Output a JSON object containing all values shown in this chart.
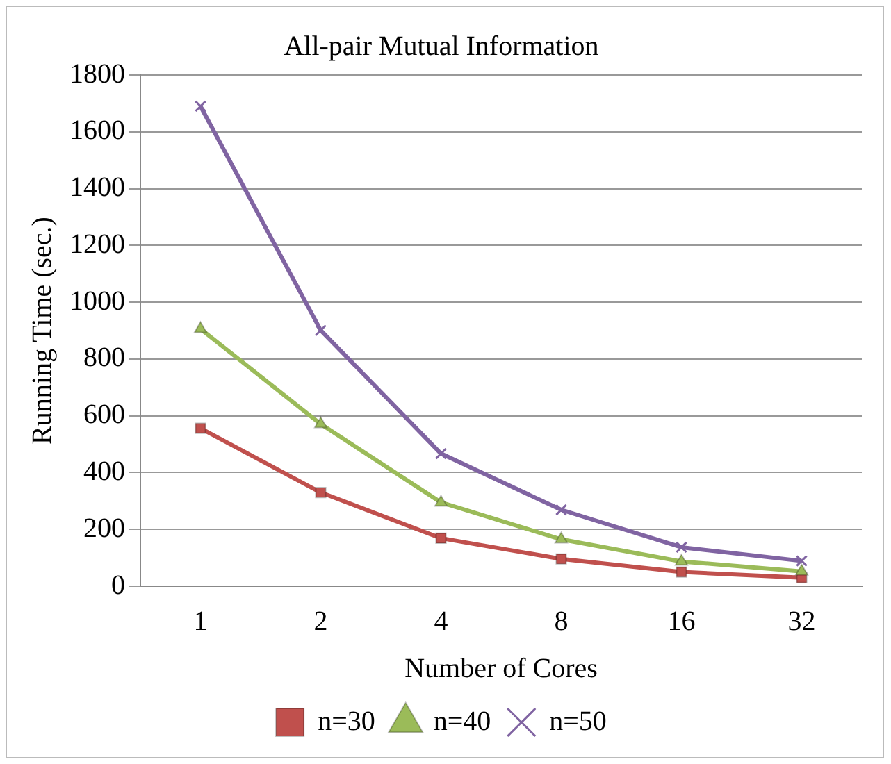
{
  "chart_data": {
    "type": "line",
    "title": "All-pair Mutual Information",
    "xlabel": "Number of Cores",
    "ylabel": "Running Time (sec.)",
    "categories": [
      "1",
      "2",
      "4",
      "8",
      "16",
      "32"
    ],
    "series": [
      {
        "name": "n=30",
        "color": "#c0504d",
        "marker": "square",
        "values": [
          556,
          330,
          169,
          96,
          50,
          30
        ]
      },
      {
        "name": "n=40",
        "color": "#9bbb59",
        "marker": "triangle",
        "values": [
          906,
          571,
          295,
          165,
          87,
          52
        ]
      },
      {
        "name": "n=50",
        "color": "#8064a2",
        "marker": "cross",
        "values": [
          1690,
          901,
          467,
          269,
          137,
          89
        ]
      }
    ],
    "ylim": [
      0,
      1800
    ],
    "yticks": [
      0,
      200,
      400,
      600,
      800,
      1000,
      1200,
      1400,
      1600,
      1800
    ],
    "grid": "y",
    "legend": "bottom"
  }
}
